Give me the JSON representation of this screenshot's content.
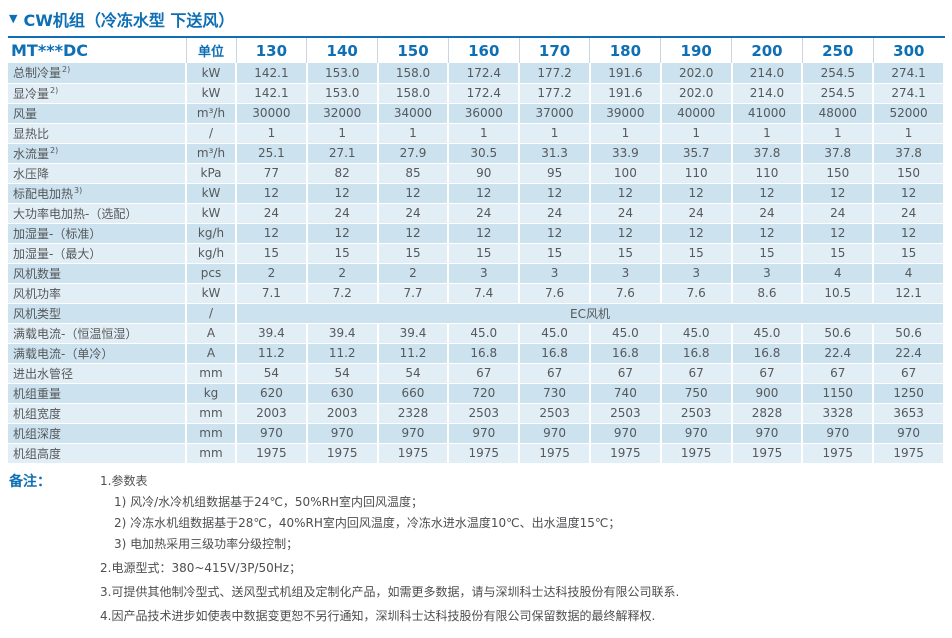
{
  "title": {
    "marker": "▼",
    "text": "CW机组（冷冻水型 下送风）"
  },
  "table": {
    "model_header": "MT***DC",
    "unit_header": "单位",
    "models": [
      "130",
      "140",
      "150",
      "160",
      "170",
      "180",
      "190",
      "200",
      "250",
      "300"
    ],
    "rows": [
      {
        "label": "总制冷量",
        "sup": "2)",
        "unit": "kW",
        "values": [
          "142.1",
          "153.0",
          "158.0",
          "172.4",
          "177.2",
          "191.6",
          "202.0",
          "214.0",
          "254.5",
          "274.1"
        ]
      },
      {
        "label": "显冷量",
        "sup": "2)",
        "unit": "kW",
        "values": [
          "142.1",
          "153.0",
          "158.0",
          "172.4",
          "177.2",
          "191.6",
          "202.0",
          "214.0",
          "254.5",
          "274.1"
        ]
      },
      {
        "label": "风量",
        "unit": "m³/h",
        "values": [
          "30000",
          "32000",
          "34000",
          "36000",
          "37000",
          "39000",
          "40000",
          "41000",
          "48000",
          "52000"
        ]
      },
      {
        "label": "显热比",
        "unit": "/",
        "values": [
          "1",
          "1",
          "1",
          "1",
          "1",
          "1",
          "1",
          "1",
          "1",
          "1"
        ]
      },
      {
        "label": "水流量",
        "sup": "2)",
        "unit": "m³/h",
        "values": [
          "25.1",
          "27.1",
          "27.9",
          "30.5",
          "31.3",
          "33.9",
          "35.7",
          "37.8",
          "37.8",
          "37.8"
        ]
      },
      {
        "label": "水压降",
        "unit": "kPa",
        "values": [
          "77",
          "82",
          "85",
          "90",
          "95",
          "100",
          "110",
          "110",
          "150",
          "150"
        ]
      },
      {
        "label": "标配电加热",
        "sup": "3)",
        "unit": "kW",
        "values": [
          "12",
          "12",
          "12",
          "12",
          "12",
          "12",
          "12",
          "12",
          "12",
          "12"
        ]
      },
      {
        "label": "大功率电加热-（选配）",
        "unit": "kW",
        "values": [
          "24",
          "24",
          "24",
          "24",
          "24",
          "24",
          "24",
          "24",
          "24",
          "24"
        ]
      },
      {
        "label": "加湿量-（标准）",
        "unit": "kg/h",
        "values": [
          "12",
          "12",
          "12",
          "12",
          "12",
          "12",
          "12",
          "12",
          "12",
          "12"
        ]
      },
      {
        "label": "加湿量-（最大）",
        "unit": "kg/h",
        "values": [
          "15",
          "15",
          "15",
          "15",
          "15",
          "15",
          "15",
          "15",
          "15",
          "15"
        ]
      },
      {
        "label": "风机数量",
        "unit": "pcs",
        "values": [
          "2",
          "2",
          "2",
          "3",
          "3",
          "3",
          "3",
          "3",
          "4",
          "4"
        ]
      },
      {
        "label": "风机功率",
        "unit": "kW",
        "values": [
          "7.1",
          "7.2",
          "7.7",
          "7.4",
          "7.6",
          "7.6",
          "7.6",
          "8.6",
          "10.5",
          "12.1"
        ]
      },
      {
        "label": "风机类型",
        "unit": "/",
        "span_value": "EC风机"
      },
      {
        "label": "满载电流-（恒温恒湿）",
        "unit": "A",
        "values": [
          "39.4",
          "39.4",
          "39.4",
          "45.0",
          "45.0",
          "45.0",
          "45.0",
          "45.0",
          "50.6",
          "50.6"
        ]
      },
      {
        "label": "满载电流-（单冷）",
        "unit": "A",
        "values": [
          "11.2",
          "11.2",
          "11.2",
          "16.8",
          "16.8",
          "16.8",
          "16.8",
          "16.8",
          "22.4",
          "22.4"
        ]
      },
      {
        "label": "进出水管径",
        "unit": "mm",
        "values": [
          "54",
          "54",
          "54",
          "67",
          "67",
          "67",
          "67",
          "67",
          "67",
          "67"
        ]
      },
      {
        "label": "机组重量",
        "unit": "kg",
        "values": [
          "620",
          "630",
          "660",
          "720",
          "730",
          "740",
          "750",
          "900",
          "1150",
          "1250"
        ]
      },
      {
        "label": "机组宽度",
        "unit": "mm",
        "values": [
          "2003",
          "2003",
          "2328",
          "2503",
          "2503",
          "2503",
          "2503",
          "2828",
          "3328",
          "3653"
        ]
      },
      {
        "label": "机组深度",
        "unit": "mm",
        "values": [
          "970",
          "970",
          "970",
          "970",
          "970",
          "970",
          "970",
          "970",
          "970",
          "970"
        ]
      },
      {
        "label": "机组高度",
        "unit": "mm",
        "values": [
          "1975",
          "1975",
          "1975",
          "1975",
          "1975",
          "1975",
          "1975",
          "1975",
          "1975",
          "1975"
        ]
      }
    ]
  },
  "notes": {
    "label": "备注：",
    "items": [
      {
        "text": "1.参数表",
        "subitems": [
          "1) 风冷/水冷机组数据基于24℃，50%RH室内回风温度；",
          "2) 冷冻水机组数据基于28℃，40%RH室内回风温度，冷冻水进水温度10℃、出水温度15℃；",
          "3) 电加热采用三级功率分级控制；"
        ]
      },
      {
        "text": "2.电源型式：380~415V/3P/50Hz；"
      },
      {
        "text": "3.可提供其他制冷型式、送风型式机组及定制化产品，如需更多数据，请与深圳科士达科技股份有限公司联系."
      },
      {
        "text": "4.因产品技术进步如使表中数据变更恕不另行通知，深圳科士达科技股份有限公司保留数据的最终解释权."
      }
    ]
  },
  "colors": {
    "accent_blue": "#0e6fb4",
    "row_dark": "#cce2ef",
    "row_light": "#e2eef6",
    "body_text": "#56585a",
    "notes_text": "#4d4e50"
  }
}
